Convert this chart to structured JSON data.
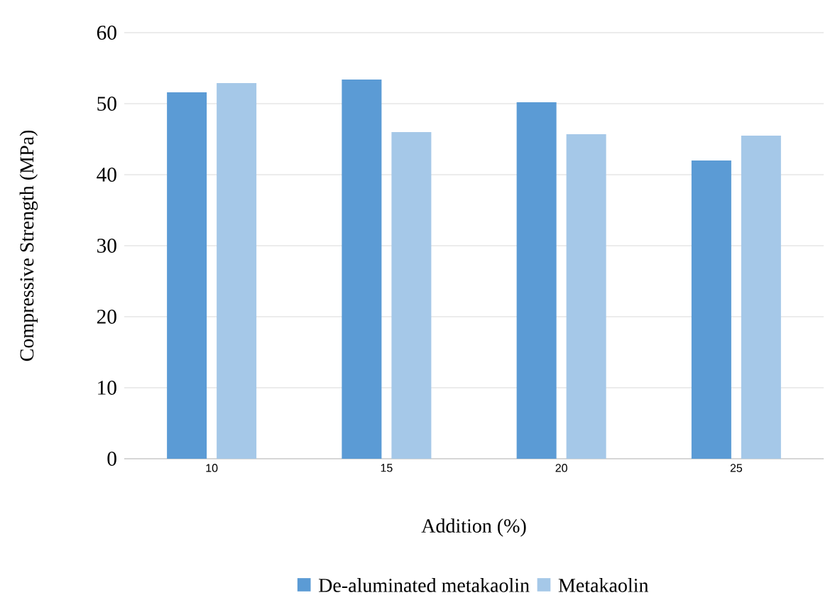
{
  "chart_data": {
    "type": "bar",
    "xlabel": "Addition (%)",
    "ylabel": "Compressive Strength (MPa)",
    "categories": [
      "10",
      "15",
      "20",
      "25"
    ],
    "series": [
      {
        "name": "De-aluminated metakaolin",
        "color": "#5b9bd5",
        "values": [
          51.6,
          53.4,
          50.2,
          42.0
        ]
      },
      {
        "name": "Metakaolin",
        "color": "#a5c8e8",
        "values": [
          52.9,
          46.0,
          45.7,
          45.5
        ]
      }
    ],
    "ylim": [
      0,
      60
    ],
    "yticks": [
      0,
      10,
      20,
      30,
      40,
      50,
      60
    ],
    "grid": "y",
    "legend": "bottom"
  }
}
